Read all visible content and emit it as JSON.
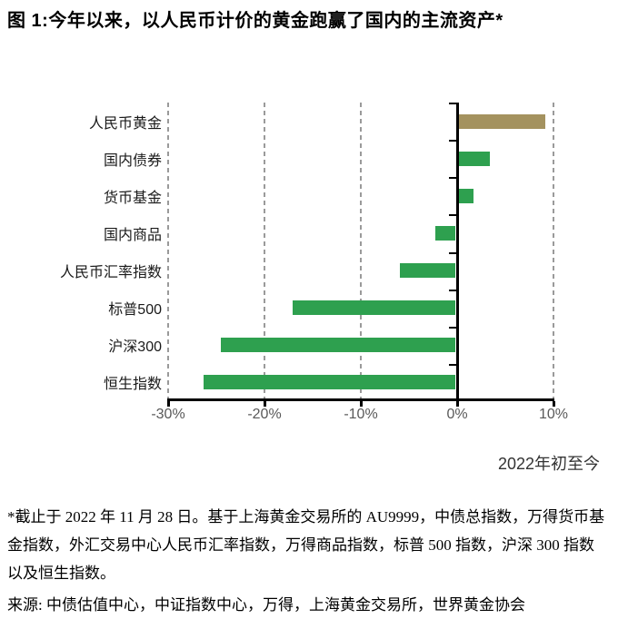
{
  "title": "图 1:今年以来，以人民币计价的黄金跑赢了国内的主流资产*",
  "chart_data": {
    "type": "bar",
    "orientation": "horizontal",
    "categories": [
      "人民币黄金",
      "国内债券",
      "货币基金",
      "国内商品",
      "人民币汇率指数",
      "标普500",
      "沪深300",
      "恒生指数"
    ],
    "values": [
      9.0,
      3.3,
      1.6,
      -2.1,
      -5.8,
      -16.9,
      -24.4,
      -26.2
    ],
    "unit": "%",
    "xlabel": "2022年初至今",
    "x_ticks": [
      "-30%",
      "-20%",
      "-10%",
      "0%",
      "10%"
    ],
    "x_tick_values": [
      -30,
      -20,
      -10,
      0,
      10
    ],
    "xlim": [
      -30,
      10
    ],
    "grid": "vertical-dashed",
    "legend": "none",
    "highlight_index": 0,
    "colors": {
      "highlight_bar": "#a4925f",
      "default_bar": "#2ea04f",
      "gridline": "#9a9a9a",
      "axis": "#000000",
      "tick_label": "#595959"
    }
  },
  "footnote": "*截止于 2022 年 11 月 28 日。基于上海黄金交易所的 AU9999，中债总指数，万得货币基金指数，外汇交易中心人民币汇率指数，万得商品指数，标普 500 指数，沪深 300 指数以及恒生指数。",
  "source": "来源: 中债估值中心，中证指数中心，万得，上海黄金交易所，世界黄金协会"
}
